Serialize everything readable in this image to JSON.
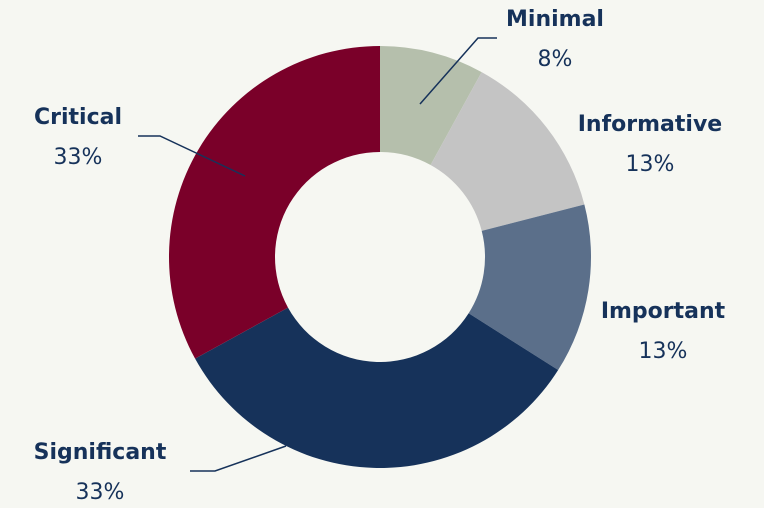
{
  "chart_data": {
    "type": "donut",
    "categories": [
      "Minimal",
      "Informative",
      "Important",
      "Significant",
      "Critical"
    ],
    "values": [
      8,
      13,
      13,
      33,
      33
    ],
    "value_labels": [
      "8%",
      "13%",
      "13%",
      "33%",
      "33%"
    ],
    "colors": [
      "#b5bfac",
      "#c4c4c4",
      "#5b6f8a",
      "#16325a",
      "#7a0029"
    ]
  }
}
